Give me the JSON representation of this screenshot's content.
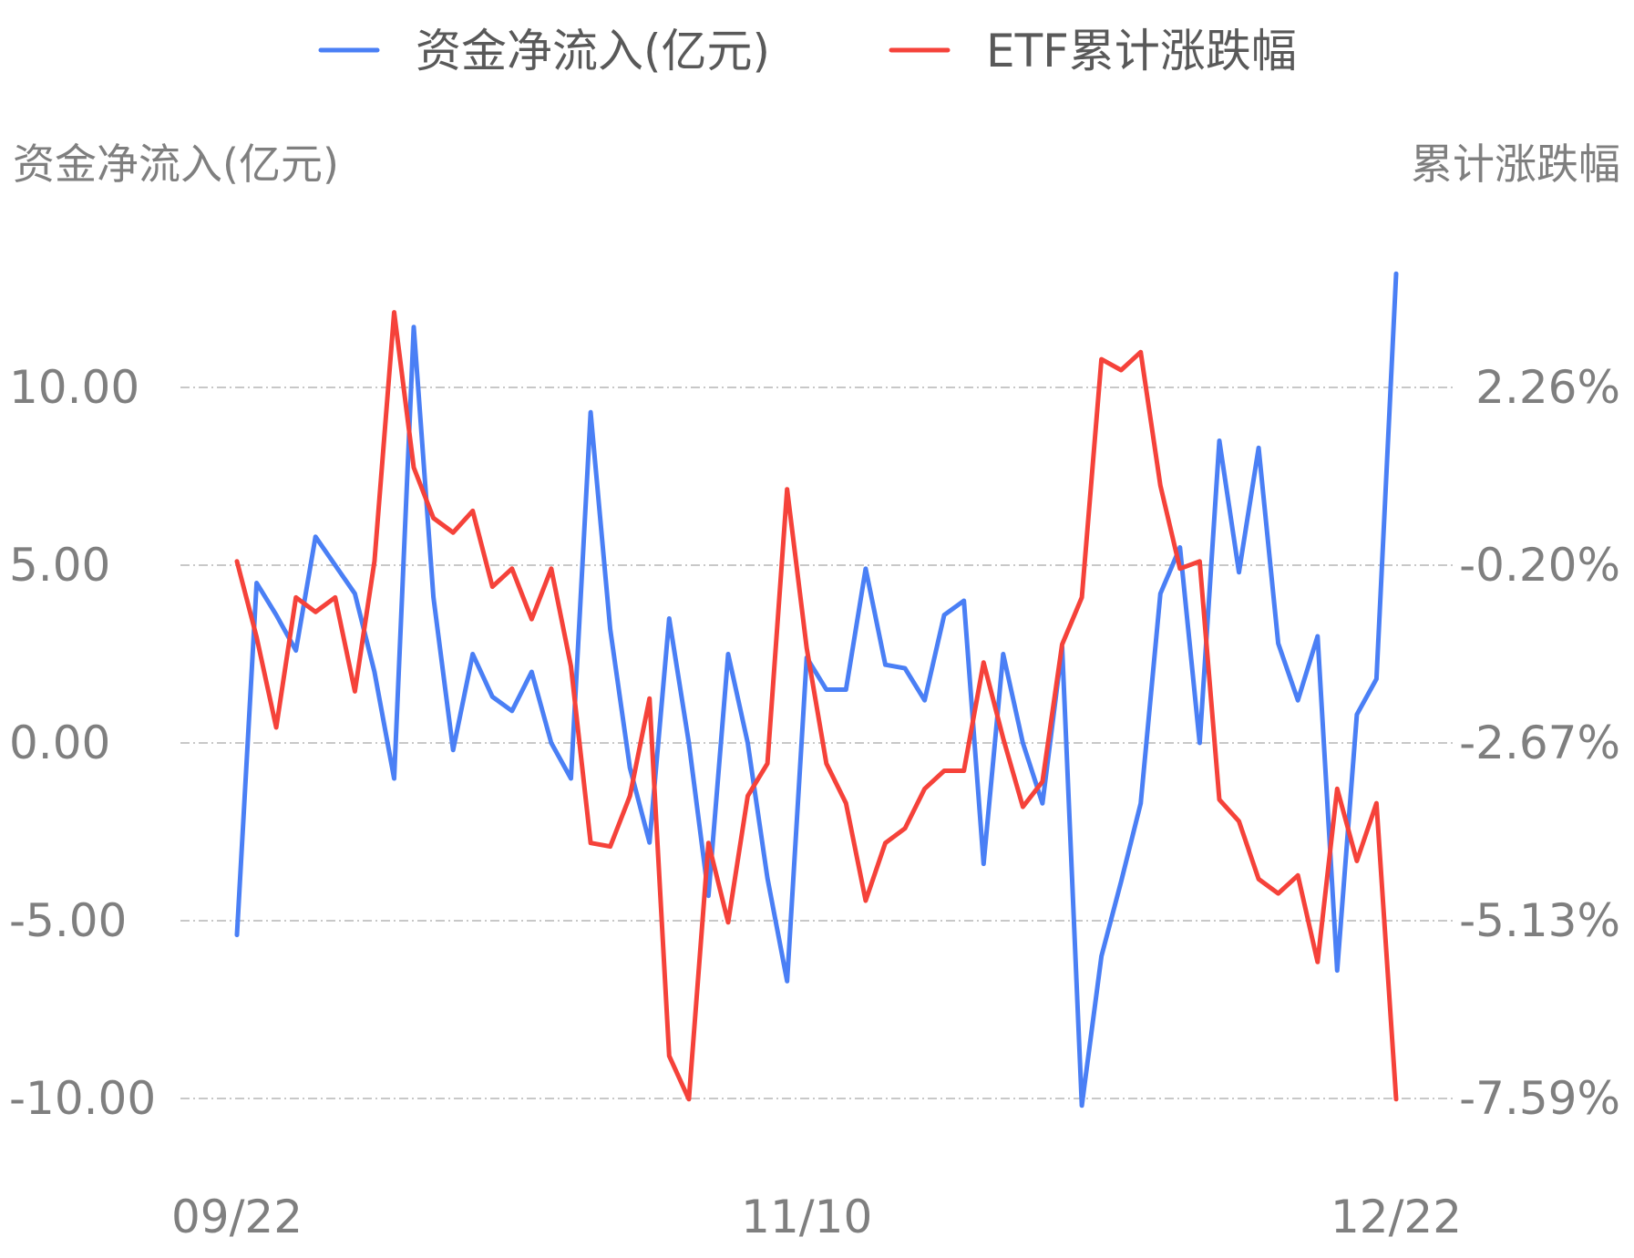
{
  "chart_data": {
    "type": "line",
    "legend": {
      "placement": "top-center",
      "entries": [
        {
          "name": "资金净流入(亿元)",
          "color": "#4a7ff5"
        },
        {
          "name": "ETF累计涨跌幅",
          "color": "#f5423a"
        }
      ]
    },
    "left_axis": {
      "title": "资金净流入(亿元)",
      "ticks": [
        10.0,
        5.0,
        0.0,
        -5.0,
        -10.0
      ],
      "tick_labels": [
        "10.00",
        "5.00",
        "0.00",
        "-5.00",
        "-10.00"
      ],
      "range": [
        -10.0,
        10.0
      ]
    },
    "right_axis": {
      "title": "累计涨跌幅",
      "tick_labels": [
        "2.26%",
        "-0.20%",
        "-2.67%",
        "-5.13%",
        "-7.59%"
      ],
      "range": [
        -7.59,
        2.26
      ]
    },
    "x_tick_labels": [
      "09/22",
      "11/10",
      "12/22"
    ],
    "x_tick_index": [
      0,
      29,
      59
    ],
    "grid": "horizontal-dashed",
    "series": [
      {
        "name": "资金净流入(亿元)",
        "axis": "left",
        "color": "#4a7ff5",
        "values": [
          -5.4,
          4.5,
          3.6,
          2.6,
          5.8,
          5.0,
          4.2,
          2.0,
          -1.0,
          11.7,
          4.1,
          -0.2,
          2.5,
          1.3,
          0.9,
          2.0,
          0.0,
          -1.0,
          9.3,
          3.2,
          -0.7,
          -2.8,
          3.5,
          0.0,
          -4.3,
          2.5,
          0.0,
          -3.8,
          -6.7,
          2.4,
          1.5,
          1.5,
          4.9,
          2.2,
          2.1,
          1.2,
          3.6,
          4.0,
          -3.4,
          2.5,
          0.0,
          -1.7,
          2.7,
          -10.2,
          -6.0,
          -3.9,
          -1.7,
          4.2,
          5.5,
          0.0,
          8.5,
          4.8,
          8.3,
          2.8,
          1.2,
          3.0,
          -6.4,
          0.8,
          1.8,
          13.2
        ]
      },
      {
        "name": "ETF累计涨跌幅",
        "axis": "right",
        "color": "#f5423a",
        "values": [
          -0.15,
          -1.2,
          -2.45,
          -0.65,
          -0.85,
          -0.65,
          -1.95,
          -0.15,
          3.3,
          1.15,
          0.45,
          0.25,
          0.55,
          -0.5,
          -0.25,
          -0.95,
          -0.25,
          -1.6,
          -4.05,
          -4.1,
          -3.4,
          -2.05,
          -7.0,
          -7.6,
          -4.05,
          -5.15,
          -3.4,
          -2.95,
          0.85,
          -1.35,
          -2.95,
          -3.5,
          -4.85,
          -4.05,
          -3.85,
          -3.3,
          -3.05,
          -3.05,
          -1.55,
          -2.6,
          -3.55,
          -3.2,
          -1.3,
          -0.65,
          2.65,
          2.5,
          2.75,
          0.9,
          -0.25,
          -0.15,
          -3.45,
          -3.75,
          -4.55,
          -4.75,
          -4.5,
          -5.7,
          -3.3,
          -4.3,
          -3.5,
          -7.6
        ]
      }
    ]
  }
}
